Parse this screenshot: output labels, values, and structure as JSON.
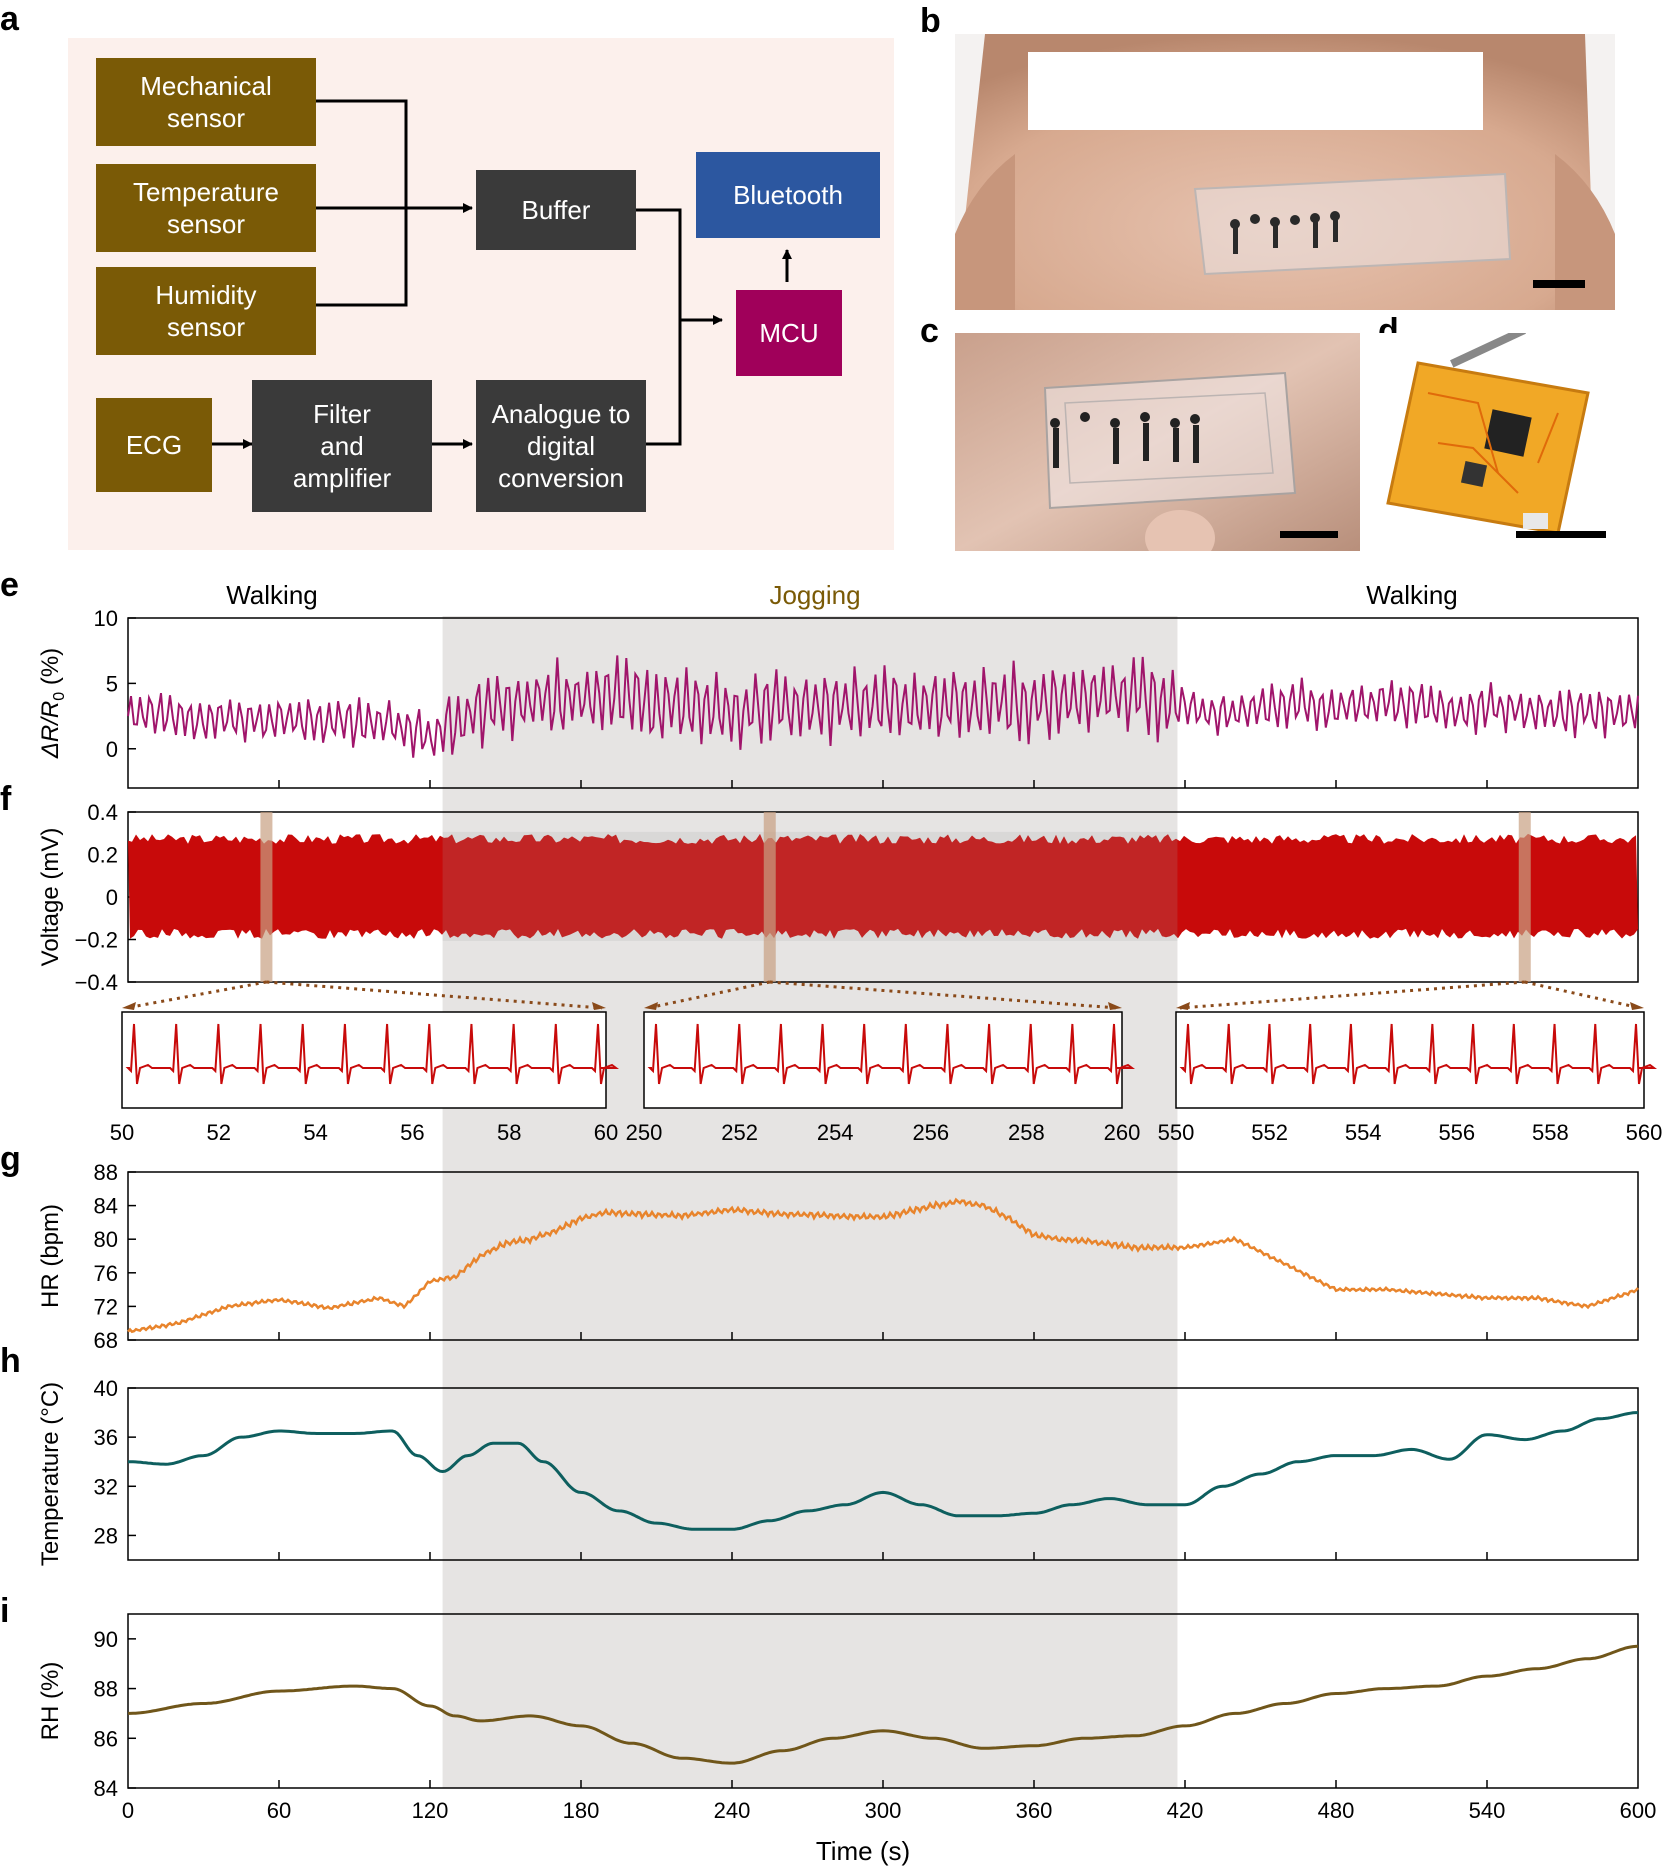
{
  "panel_labels": {
    "a": "a",
    "b": "b",
    "c": "c",
    "d": "d",
    "e": "e",
    "f": "f",
    "g": "g",
    "h": "h",
    "i": "i"
  },
  "diagram": {
    "mechanical": [
      "Mechanical",
      "sensor"
    ],
    "temperature": [
      "Temperature",
      "sensor"
    ],
    "humidity": [
      "Humidity",
      "sensor"
    ],
    "ecg": [
      "ECG"
    ],
    "filter": [
      "Filter",
      "and",
      "amplifier"
    ],
    "adc": [
      "Analogue to",
      "digital",
      "conversion"
    ],
    "buffer": [
      "Buffer"
    ],
    "mcu": [
      "MCU"
    ],
    "bluetooth": [
      "Bluetooth"
    ],
    "colors": {
      "sensor": "#7a5a06",
      "process": "#3a3a3a",
      "mcu": "#a0005a",
      "bluetooth": "#2c57a0",
      "background": "#fcf0ec"
    }
  },
  "phases": {
    "walking_1": "Walking",
    "jogging": "Jogging",
    "walking_2": "Walking"
  },
  "chart_data": [
    {
      "id": "e",
      "type": "line",
      "ylabel_parts": [
        "ΔR/R",
        "0",
        "(%)"
      ],
      "yticks": [
        0,
        5,
        10
      ],
      "ylim": [
        -3,
        10
      ],
      "xlim": [
        0,
        600
      ],
      "color": "#a0156b",
      "x": [
        0,
        15,
        30,
        45,
        60,
        75,
        90,
        105,
        120,
        135,
        150,
        165,
        180,
        195,
        210,
        225,
        240,
        255,
        270,
        285,
        300,
        315,
        330,
        345,
        360,
        375,
        390,
        405,
        420,
        435,
        450,
        465,
        480,
        495,
        510,
        525,
        540,
        555,
        570,
        585,
        600
      ],
      "y": [
        2.5,
        2.6,
        2.4,
        2.3,
        2.2,
        2.1,
        2.0,
        2.0,
        1.0,
        2.5,
        3.5,
        3.6,
        3.8,
        4.0,
        3.2,
        3.3,
        3.0,
        3.2,
        3.4,
        3.5,
        3.3,
        3.2,
        3.5,
        3.6,
        3.5,
        3.8,
        3.9,
        4.0,
        3.0,
        2.5,
        3.2,
        3.5,
        3.0,
        3.5,
        3.4,
        3.0,
        3.2,
        3.0,
        2.8,
        2.9,
        2.8
      ]
    },
    {
      "id": "f",
      "type": "area",
      "ylabel": "Voltage (mV)",
      "ytick_labels": [
        "0.4",
        "0.2",
        "0",
        "−0.2",
        "−0.4"
      ],
      "yticks": [
        0.4,
        0.2,
        0,
        -0.2,
        -0.4
      ],
      "ylim": [
        -0.4,
        0.4
      ],
      "xlim": [
        0,
        600
      ],
      "color": "#c80a0a",
      "band": [
        0.25,
        -0.15
      ],
      "highlight_windows": [
        [
          50,
          60
        ],
        [
          250,
          260
        ],
        [
          550,
          560
        ]
      ],
      "insets": [
        {
          "xticks": [
            50,
            52,
            54,
            56,
            58,
            60
          ]
        },
        {
          "xticks": [
            250,
            252,
            254,
            256,
            258,
            260
          ]
        },
        {
          "xticks": [
            550,
            552,
            554,
            556,
            558,
            560
          ]
        }
      ]
    },
    {
      "id": "g",
      "type": "line",
      "ylabel": "HR (bpm)",
      "yticks": [
        68,
        72,
        76,
        80,
        84,
        88
      ],
      "ylim": [
        68,
        88
      ],
      "xlim": [
        0,
        600
      ],
      "color": "#e8842c",
      "x": [
        0,
        20,
        40,
        60,
        80,
        100,
        110,
        120,
        130,
        140,
        150,
        160,
        170,
        180,
        190,
        200,
        220,
        240,
        260,
        280,
        300,
        320,
        330,
        340,
        350,
        360,
        370,
        380,
        400,
        420,
        440,
        460,
        480,
        500,
        520,
        540,
        560,
        580,
        600
      ],
      "y": [
        69,
        70,
        72,
        72.8,
        71.8,
        73,
        72,
        75,
        75.5,
        78,
        79.5,
        80,
        81,
        82.5,
        83.2,
        83,
        82.8,
        83.5,
        83,
        82.8,
        82.6,
        84,
        84.5,
        84,
        82.5,
        80.5,
        80,
        79.8,
        79,
        79,
        80,
        77,
        74,
        74,
        73.5,
        73,
        73,
        72,
        74
      ]
    },
    {
      "id": "h",
      "type": "line",
      "ylabel": "Temperature (°C)",
      "yticks": [
        28,
        32,
        36,
        40
      ],
      "ylim": [
        26,
        40
      ],
      "xlim": [
        0,
        600
      ],
      "color": "#0e5f5f",
      "x": [
        0,
        15,
        30,
        45,
        60,
        75,
        90,
        105,
        115,
        125,
        135,
        145,
        155,
        165,
        180,
        195,
        210,
        225,
        240,
        255,
        270,
        285,
        300,
        315,
        330,
        345,
        360,
        375,
        390,
        405,
        420,
        435,
        450,
        465,
        480,
        495,
        510,
        525,
        540,
        555,
        570,
        585,
        600
      ],
      "y": [
        34,
        33.8,
        34.5,
        36,
        36.5,
        36.3,
        36.3,
        36.5,
        34.5,
        33.2,
        34.5,
        35.5,
        35.5,
        34,
        31.5,
        30,
        29,
        28.5,
        28.5,
        29.2,
        30,
        30.5,
        31.5,
        30.5,
        29.6,
        29.6,
        29.8,
        30.5,
        31,
        30.5,
        30.5,
        32,
        33,
        34,
        34.5,
        34.5,
        35,
        34.2,
        36.2,
        35.8,
        36.5,
        37.5,
        38
      ]
    },
    {
      "id": "i",
      "type": "line",
      "ylabel": "RH (%)",
      "xlabel": "Time (s)",
      "yticks": [
        84,
        86,
        88,
        90
      ],
      "ylim": [
        84,
        91
      ],
      "xlim": [
        0,
        600
      ],
      "xticks": [
        0,
        60,
        120,
        180,
        240,
        300,
        360,
        420,
        480,
        540,
        600
      ],
      "color": "#70561a",
      "x": [
        0,
        30,
        60,
        90,
        105,
        120,
        130,
        140,
        160,
        180,
        200,
        220,
        240,
        260,
        280,
        300,
        320,
        340,
        360,
        380,
        400,
        420,
        440,
        460,
        480,
        500,
        520,
        540,
        560,
        580,
        600
      ],
      "y": [
        87,
        87.4,
        87.9,
        88.1,
        88,
        87.3,
        86.9,
        86.7,
        86.9,
        86.5,
        85.8,
        85.2,
        85,
        85.5,
        86.0,
        86.3,
        86.0,
        85.6,
        85.7,
        86,
        86.1,
        86.5,
        87.0,
        87.4,
        87.8,
        88.0,
        88.1,
        88.5,
        88.8,
        89.2,
        89.7
      ]
    }
  ],
  "jogging_window": [
    125,
    417
  ]
}
